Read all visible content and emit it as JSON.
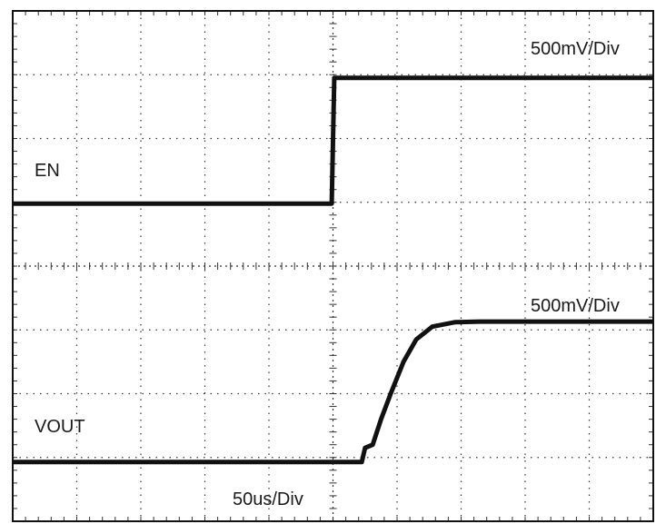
{
  "chart_data": {
    "type": "line",
    "title": "",
    "xlabel": "",
    "ylabel": "",
    "grid": true,
    "divisions": {
      "x": 10,
      "y": 8
    },
    "xlim": [
      0,
      10
    ],
    "ylim": [
      0,
      8
    ],
    "trace_color": "#111111",
    "grid_color": "#333333",
    "series": [
      {
        "name": "EN",
        "scale": "500mV/Div",
        "x": [
          0,
          4.98,
          5.02,
          10
        ],
        "y": [
          4.98,
          4.98,
          6.95,
          6.95
        ]
      },
      {
        "name": "VOUT",
        "scale": "500mV/Div",
        "x": [
          0,
          5.45,
          5.5,
          5.62,
          5.75,
          5.9,
          6.1,
          6.3,
          6.55,
          6.9,
          7.3,
          8.0,
          10
        ],
        "y": [
          0.93,
          0.93,
          1.15,
          1.2,
          1.6,
          2.0,
          2.5,
          2.85,
          3.05,
          3.12,
          3.13,
          3.13,
          3.13
        ]
      }
    ],
    "time_scale": "50us/Div"
  }
}
